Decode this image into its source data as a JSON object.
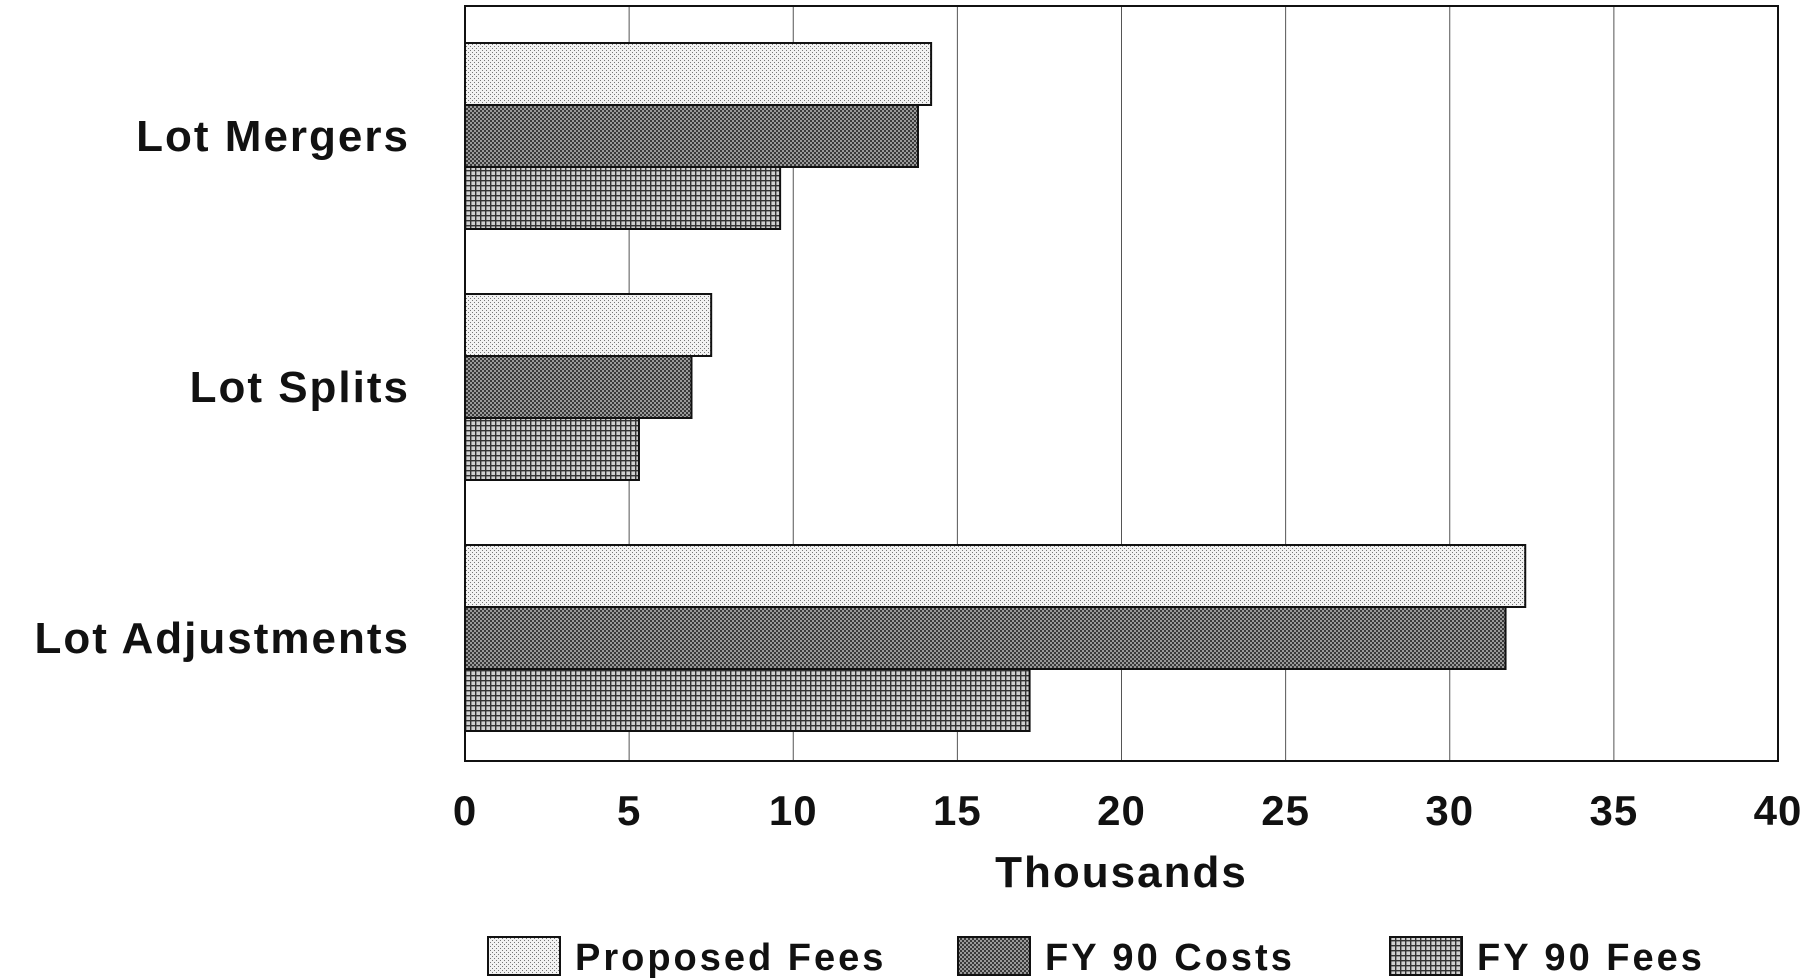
{
  "chart_data": {
    "type": "bar",
    "orientation": "horizontal",
    "categories": [
      "Lot Mergers",
      "Lot Splits",
      "Lot Adjustments"
    ],
    "series": [
      {
        "name": "Proposed Fees",
        "values": [
          14.2,
          7.5,
          32.3
        ],
        "pattern": "fine-dots",
        "color": "#e4e4e4"
      },
      {
        "name": "FY 90 Costs",
        "values": [
          13.8,
          6.9,
          31.7
        ],
        "pattern": "dense-cross",
        "color": "#5a5a5a"
      },
      {
        "name": "FY 90 Fees",
        "values": [
          9.6,
          5.3,
          17.2
        ],
        "pattern": "grid",
        "color": "#8a8a8a"
      }
    ],
    "xlabel": "Thousands",
    "ylabel": "",
    "xlim": [
      0,
      40
    ],
    "xticks": [
      "0",
      "5",
      "10",
      "15",
      "20",
      "25",
      "30",
      "35",
      "40"
    ],
    "grid": "vertical",
    "legend": "bottom"
  }
}
